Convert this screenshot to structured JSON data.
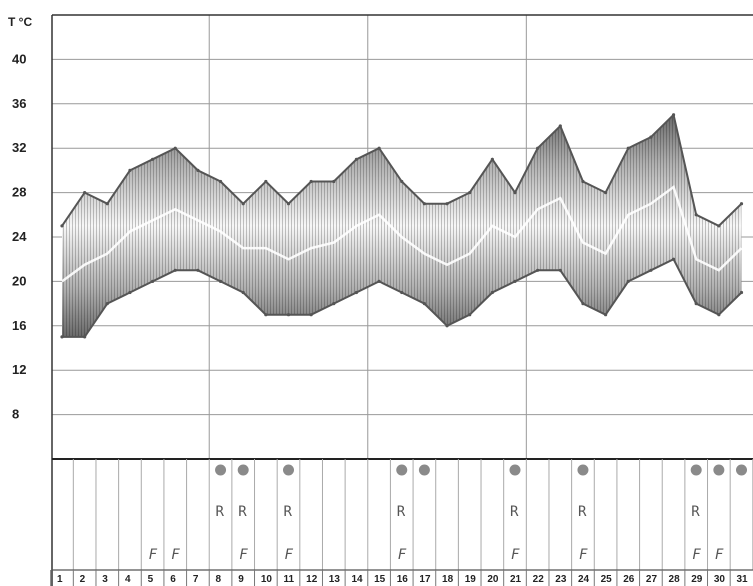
{
  "chart_data": {
    "type": "area",
    "ylabel": "T °C",
    "ylim": [
      4,
      44
    ],
    "yticks": [
      8,
      12,
      16,
      20,
      24,
      28,
      32,
      36,
      40
    ],
    "days": [
      1,
      2,
      3,
      4,
      5,
      6,
      7,
      8,
      9,
      10,
      11,
      12,
      13,
      14,
      15,
      16,
      17,
      18,
      19,
      20,
      21,
      22,
      23,
      24,
      25,
      26,
      27,
      28,
      29,
      30,
      31
    ],
    "day_labels": [
      "1",
      "2",
      "3",
      "4",
      "5",
      "6",
      "7",
      "8",
      "9",
      "10",
      "11",
      "12",
      "13",
      "14",
      "15",
      "16",
      "17",
      "18",
      "19",
      "20",
      "21",
      "22",
      "23",
      "24",
      "25",
      "26",
      "27",
      "28",
      "29",
      "30",
      "31"
    ],
    "series": [
      {
        "values": [
          25,
          28,
          27,
          30,
          31,
          32,
          30,
          29,
          27,
          29,
          27,
          29,
          29,
          31,
          32,
          29,
          27,
          27,
          28,
          31,
          28,
          32,
          34,
          29,
          28,
          32,
          33,
          35,
          26,
          25,
          27
        ]
      },
      {
        "values": [
          15,
          15,
          18,
          19,
          20,
          21,
          21,
          20,
          19,
          17,
          17,
          17,
          18,
          19,
          20,
          19,
          18,
          16,
          17,
          19,
          20,
          21,
          21,
          18,
          17,
          20,
          21,
          22,
          18,
          17,
          19
        ]
      }
    ],
    "rain_days": [
      8,
      9,
      11,
      16,
      17,
      21,
      24,
      29,
      30,
      31
    ],
    "r_symbol_days": [
      8,
      9,
      11,
      16,
      21,
      24,
      29
    ],
    "f_symbol_days": [
      5,
      6,
      9,
      11,
      16,
      21,
      24,
      29,
      30
    ],
    "r_symbol": "R",
    "f_symbol": "F",
    "colors": {
      "outline": "#555555",
      "band_edge": "#6a6a6a",
      "band_mid": "#cdcdcd",
      "band_center": "#f2f2f2",
      "grid": "#999999",
      "rain_dot": "#8a8a8a"
    }
  }
}
